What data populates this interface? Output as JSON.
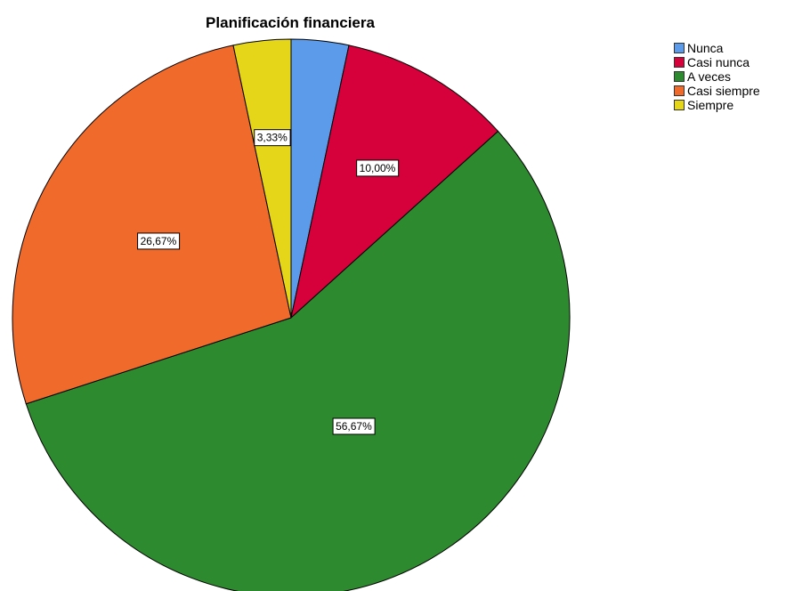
{
  "chart_data": {
    "type": "pie",
    "title": "Planificación financiera",
    "legend_position": "top-right",
    "slices": [
      {
        "label": "Nunca",
        "value": 3.33,
        "display": "",
        "color": "#5b9bea"
      },
      {
        "label": "Casi nunca",
        "value": 10.0,
        "display": "10,00%",
        "color": "#d6003a"
      },
      {
        "label": "A veces",
        "value": 56.67,
        "display": "56,67%",
        "color": "#2e8a2e"
      },
      {
        "label": "Casi siempre",
        "value": 26.67,
        "display": "26,67%",
        "color": "#f06b2b"
      },
      {
        "label": "Siempre",
        "value": 3.33,
        "display": "3,33%",
        "color": "#e5d619"
      }
    ]
  }
}
